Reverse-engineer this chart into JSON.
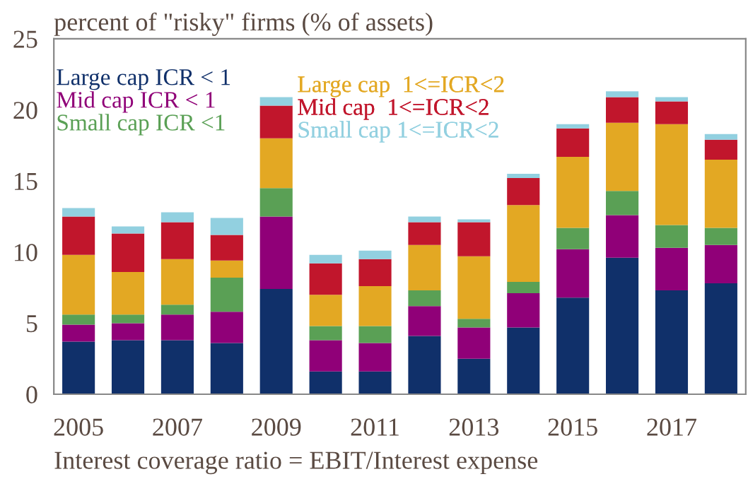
{
  "chart_data": {
    "type": "bar",
    "stacked": true,
    "title": "percent of \"risky\" firms (% of assets)",
    "annotations": [
      "Interest coverage ratio = EBIT/Interest expense"
    ],
    "categories": [
      "2005",
      null,
      "2007",
      null,
      "2009",
      null,
      "2011",
      null,
      "2013",
      null,
      "2015",
      null,
      "2017",
      null
    ],
    "series": [
      {
        "name": "Large cap ICR < 1",
        "color": "#10306a",
        "values": [
          3.7,
          3.8,
          3.8,
          3.6,
          7.4,
          1.6,
          1.6,
          4.1,
          2.5,
          4.7,
          6.8,
          9.6,
          7.3,
          7.8
        ]
      },
      {
        "name": "Mid cap ICR < 1",
        "color": "#900078",
        "values": [
          1.2,
          1.2,
          1.8,
          2.2,
          5.1,
          2.2,
          2.0,
          2.1,
          2.2,
          2.4,
          3.4,
          3.0,
          3.0,
          2.7
        ]
      },
      {
        "name": "Small cap ICR <1",
        "color": "#5aa055",
        "values": [
          0.7,
          0.6,
          0.7,
          2.4,
          2.0,
          1.0,
          1.2,
          1.1,
          0.6,
          0.8,
          1.5,
          1.7,
          1.6,
          1.2
        ]
      },
      {
        "name": "Large cap  1<=ICR<2",
        "color": "#e3a823",
        "values": [
          4.2,
          3.0,
          3.2,
          1.2,
          3.5,
          2.2,
          2.8,
          3.2,
          4.4,
          5.4,
          5.0,
          4.8,
          7.1,
          4.8
        ]
      },
      {
        "name": "Mid cap  1<=ICR<2",
        "color": "#c1162c",
        "values": [
          2.7,
          2.7,
          2.6,
          1.8,
          2.3,
          2.2,
          1.9,
          1.6,
          2.4,
          1.9,
          2.0,
          1.8,
          1.6,
          1.4
        ]
      },
      {
        "name": "Small cap 1<=ICR<2",
        "color": "#92d0e0",
        "values": [
          0.6,
          0.5,
          0.7,
          1.2,
          0.6,
          0.6,
          0.6,
          0.4,
          0.2,
          0.3,
          0.3,
          0.4,
          0.3,
          0.4
        ]
      }
    ],
    "ylim": [
      0,
      25
    ],
    "yticks": [
      0,
      5,
      10,
      15,
      20,
      25
    ],
    "grid": false,
    "legend": "top left"
  }
}
